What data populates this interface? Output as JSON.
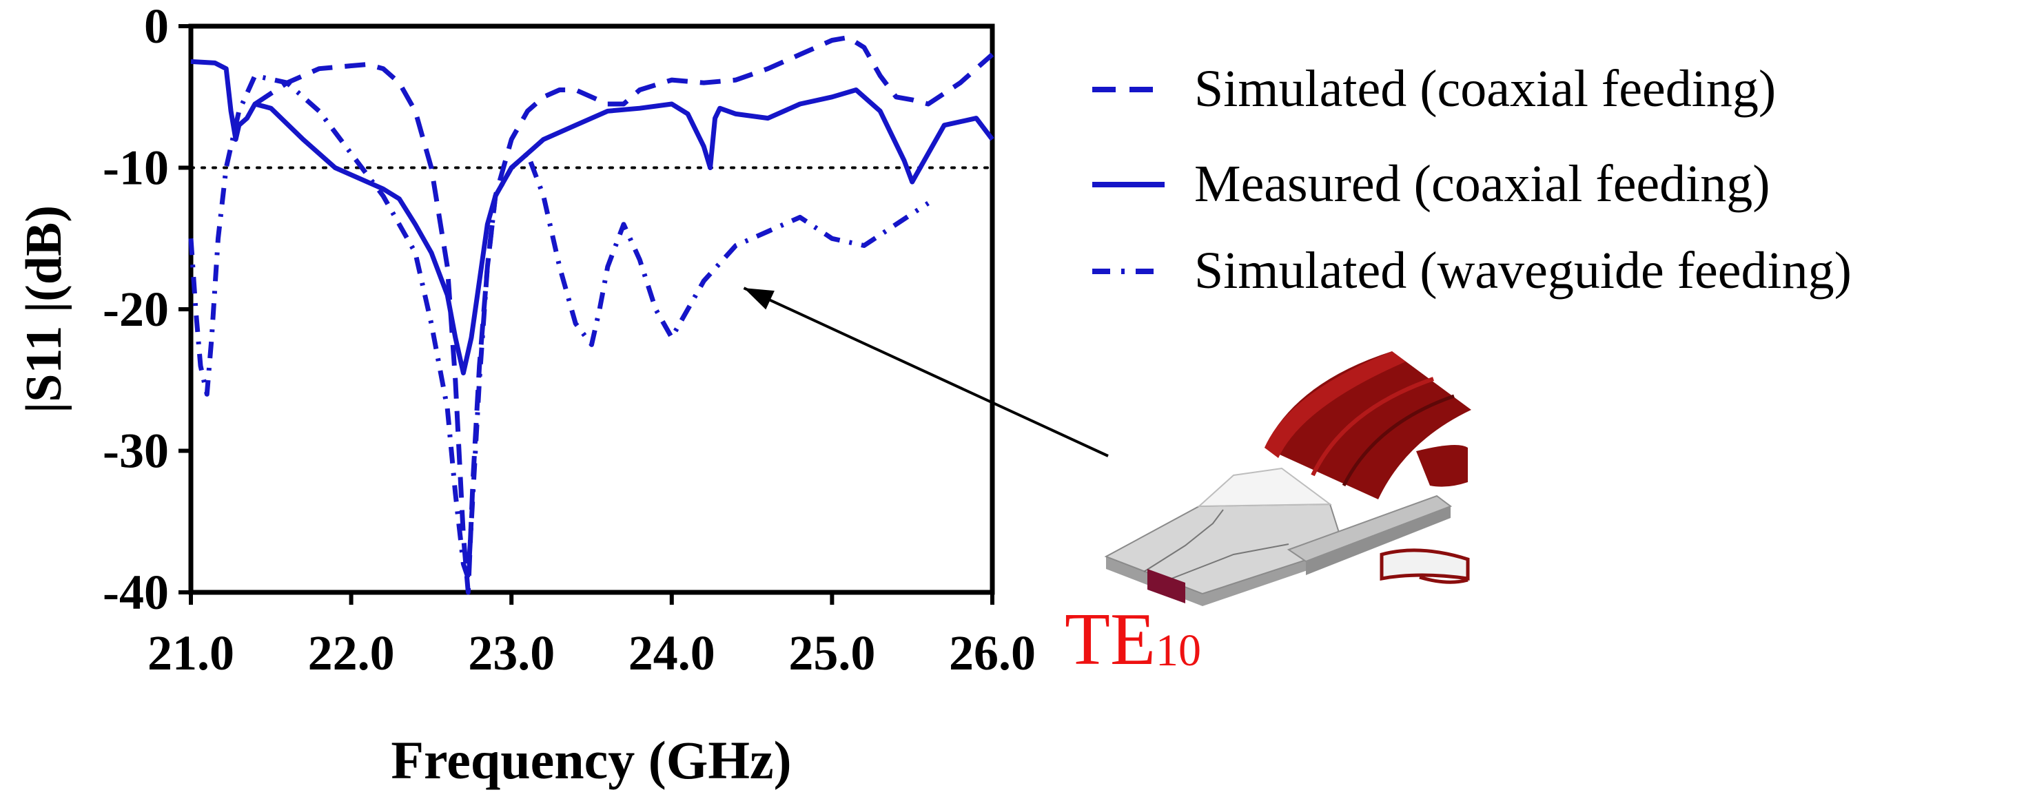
{
  "chart_data": {
    "type": "line",
    "title": "",
    "xlabel": "Frequency (GHz)",
    "ylabel": "|S11 |(dB)",
    "xlim": [
      21.0,
      26.0
    ],
    "ylim": [
      -40,
      0
    ],
    "xticks": [
      "21.0",
      "22.0",
      "23.0",
      "24.0",
      "25.0",
      "26.0"
    ],
    "yticks": [
      "0",
      "-10",
      "-20",
      "-30",
      "-40"
    ],
    "xtick_values": [
      21,
      22,
      23,
      24,
      25,
      26
    ],
    "ytick_values": [
      0,
      -10,
      -20,
      -30,
      -40
    ],
    "grid": false,
    "legend_position": "right",
    "reference_line": {
      "y": -10,
      "style": "dotted"
    },
    "series": [
      {
        "name": "Simulated (coaxial feeding)",
        "style": "dashed",
        "x": [
          21.4,
          21.6,
          21.8,
          22.0,
          22.1,
          22.2,
          22.3,
          22.4,
          22.5,
          22.6,
          22.65,
          22.7,
          22.73,
          22.76,
          22.8,
          22.85,
          22.9,
          23.0,
          23.1,
          23.2,
          23.3,
          23.4,
          23.5,
          23.6,
          23.7,
          23.8,
          24.0,
          24.2,
          24.4,
          24.6,
          24.8,
          25.0,
          25.1,
          25.2,
          25.3,
          25.4,
          25.5,
          25.6,
          25.8,
          26.0
        ],
        "values": [
          -5.5,
          -4.0,
          -3.0,
          -2.8,
          -2.7,
          -3.0,
          -4.0,
          -6.0,
          -10.0,
          -17.0,
          -25.0,
          -36.0,
          -40.0,
          -32.0,
          -24.0,
          -17.0,
          -12.0,
          -8.0,
          -6.0,
          -5.0,
          -4.5,
          -4.5,
          -5.0,
          -5.5,
          -5.5,
          -4.5,
          -3.8,
          -4.0,
          -3.8,
          -3.0,
          -2.0,
          -1.0,
          -0.8,
          -1.5,
          -3.5,
          -5.0,
          -5.2,
          -5.5,
          -4.0,
          -2.0
        ]
      },
      {
        "name": "Measured (coaxial feeding)",
        "style": "solid",
        "x": [
          21.0,
          21.15,
          21.22,
          21.25,
          21.28,
          21.3,
          21.35,
          21.4,
          21.5,
          21.7,
          21.9,
          22.0,
          22.2,
          22.3,
          22.4,
          22.5,
          22.6,
          22.65,
          22.7,
          22.75,
          22.8,
          22.85,
          22.9,
          23.0,
          23.2,
          23.4,
          23.6,
          23.8,
          24.0,
          24.1,
          24.2,
          24.24,
          24.27,
          24.3,
          24.4,
          24.6,
          24.8,
          25.0,
          25.15,
          25.3,
          25.45,
          25.5,
          25.55,
          25.7,
          25.9,
          26.0
        ],
        "values": [
          -2.5,
          -2.6,
          -3.0,
          -6.0,
          -8.0,
          -7.0,
          -6.5,
          -5.5,
          -5.8,
          -8.0,
          -10.0,
          -10.5,
          -11.5,
          -12.2,
          -14.0,
          -16.0,
          -19.0,
          -22.0,
          -24.5,
          -22.0,
          -18.0,
          -14.0,
          -12.0,
          -10.0,
          -8.0,
          -7.0,
          -6.0,
          -5.8,
          -5.5,
          -6.2,
          -8.5,
          -10.0,
          -6.5,
          -5.8,
          -6.2,
          -6.5,
          -5.5,
          -5.0,
          -4.5,
          -6.0,
          -9.5,
          -11.0,
          -10.0,
          -7.0,
          -6.5,
          -8.0
        ]
      },
      {
        "name": "Simulated (waveguide feeding)",
        "style": "dash-dot",
        "x": [
          21.0,
          21.03,
          21.06,
          21.1,
          21.13,
          21.17,
          21.22,
          21.3,
          21.4,
          21.6,
          21.8,
          22.0,
          22.2,
          22.4,
          22.5,
          22.6,
          22.65,
          22.7,
          22.73,
          22.76,
          22.8,
          22.85,
          22.9,
          23.0,
          23.1,
          23.2,
          23.3,
          23.4,
          23.5,
          23.55,
          23.6,
          23.7,
          23.8,
          23.9,
          24.0,
          24.05,
          24.1,
          24.2,
          24.4,
          24.6,
          24.8,
          25.0,
          25.2,
          25.4,
          25.6
        ],
        "values": [
          -15.0,
          -20.0,
          -24.0,
          -26.0,
          -22.0,
          -15.0,
          -10.0,
          -6.0,
          -3.5,
          -4.0,
          -6.0,
          -9.0,
          -12.0,
          -16.0,
          -21.0,
          -27.0,
          -33.0,
          -38.0,
          -39.0,
          -33.0,
          -25.0,
          -17.0,
          -12.0,
          -10.0,
          -9.0,
          -12.0,
          -17.0,
          -21.0,
          -22.5,
          -20.0,
          -17.0,
          -14.0,
          -16.5,
          -20.0,
          -22.0,
          -21.0,
          -20.0,
          -18.0,
          -15.5,
          -14.5,
          -13.5,
          -15.0,
          -15.5,
          -14.0,
          -12.5
        ]
      }
    ]
  },
  "annotation": {
    "label_main": "TE",
    "label_sub": "10",
    "arrow_target": {
      "x": 24.45,
      "y": -18.5
    }
  },
  "colors": {
    "series": "#1515c8",
    "axis": "#000000",
    "arrow": "#000000",
    "label": "#ee1111",
    "antenna_red": "#8a0d0d",
    "antenna_red_light": "#b31a1a",
    "feed_grey": "#bdbdbd",
    "feed_port": "#7a1030"
  }
}
